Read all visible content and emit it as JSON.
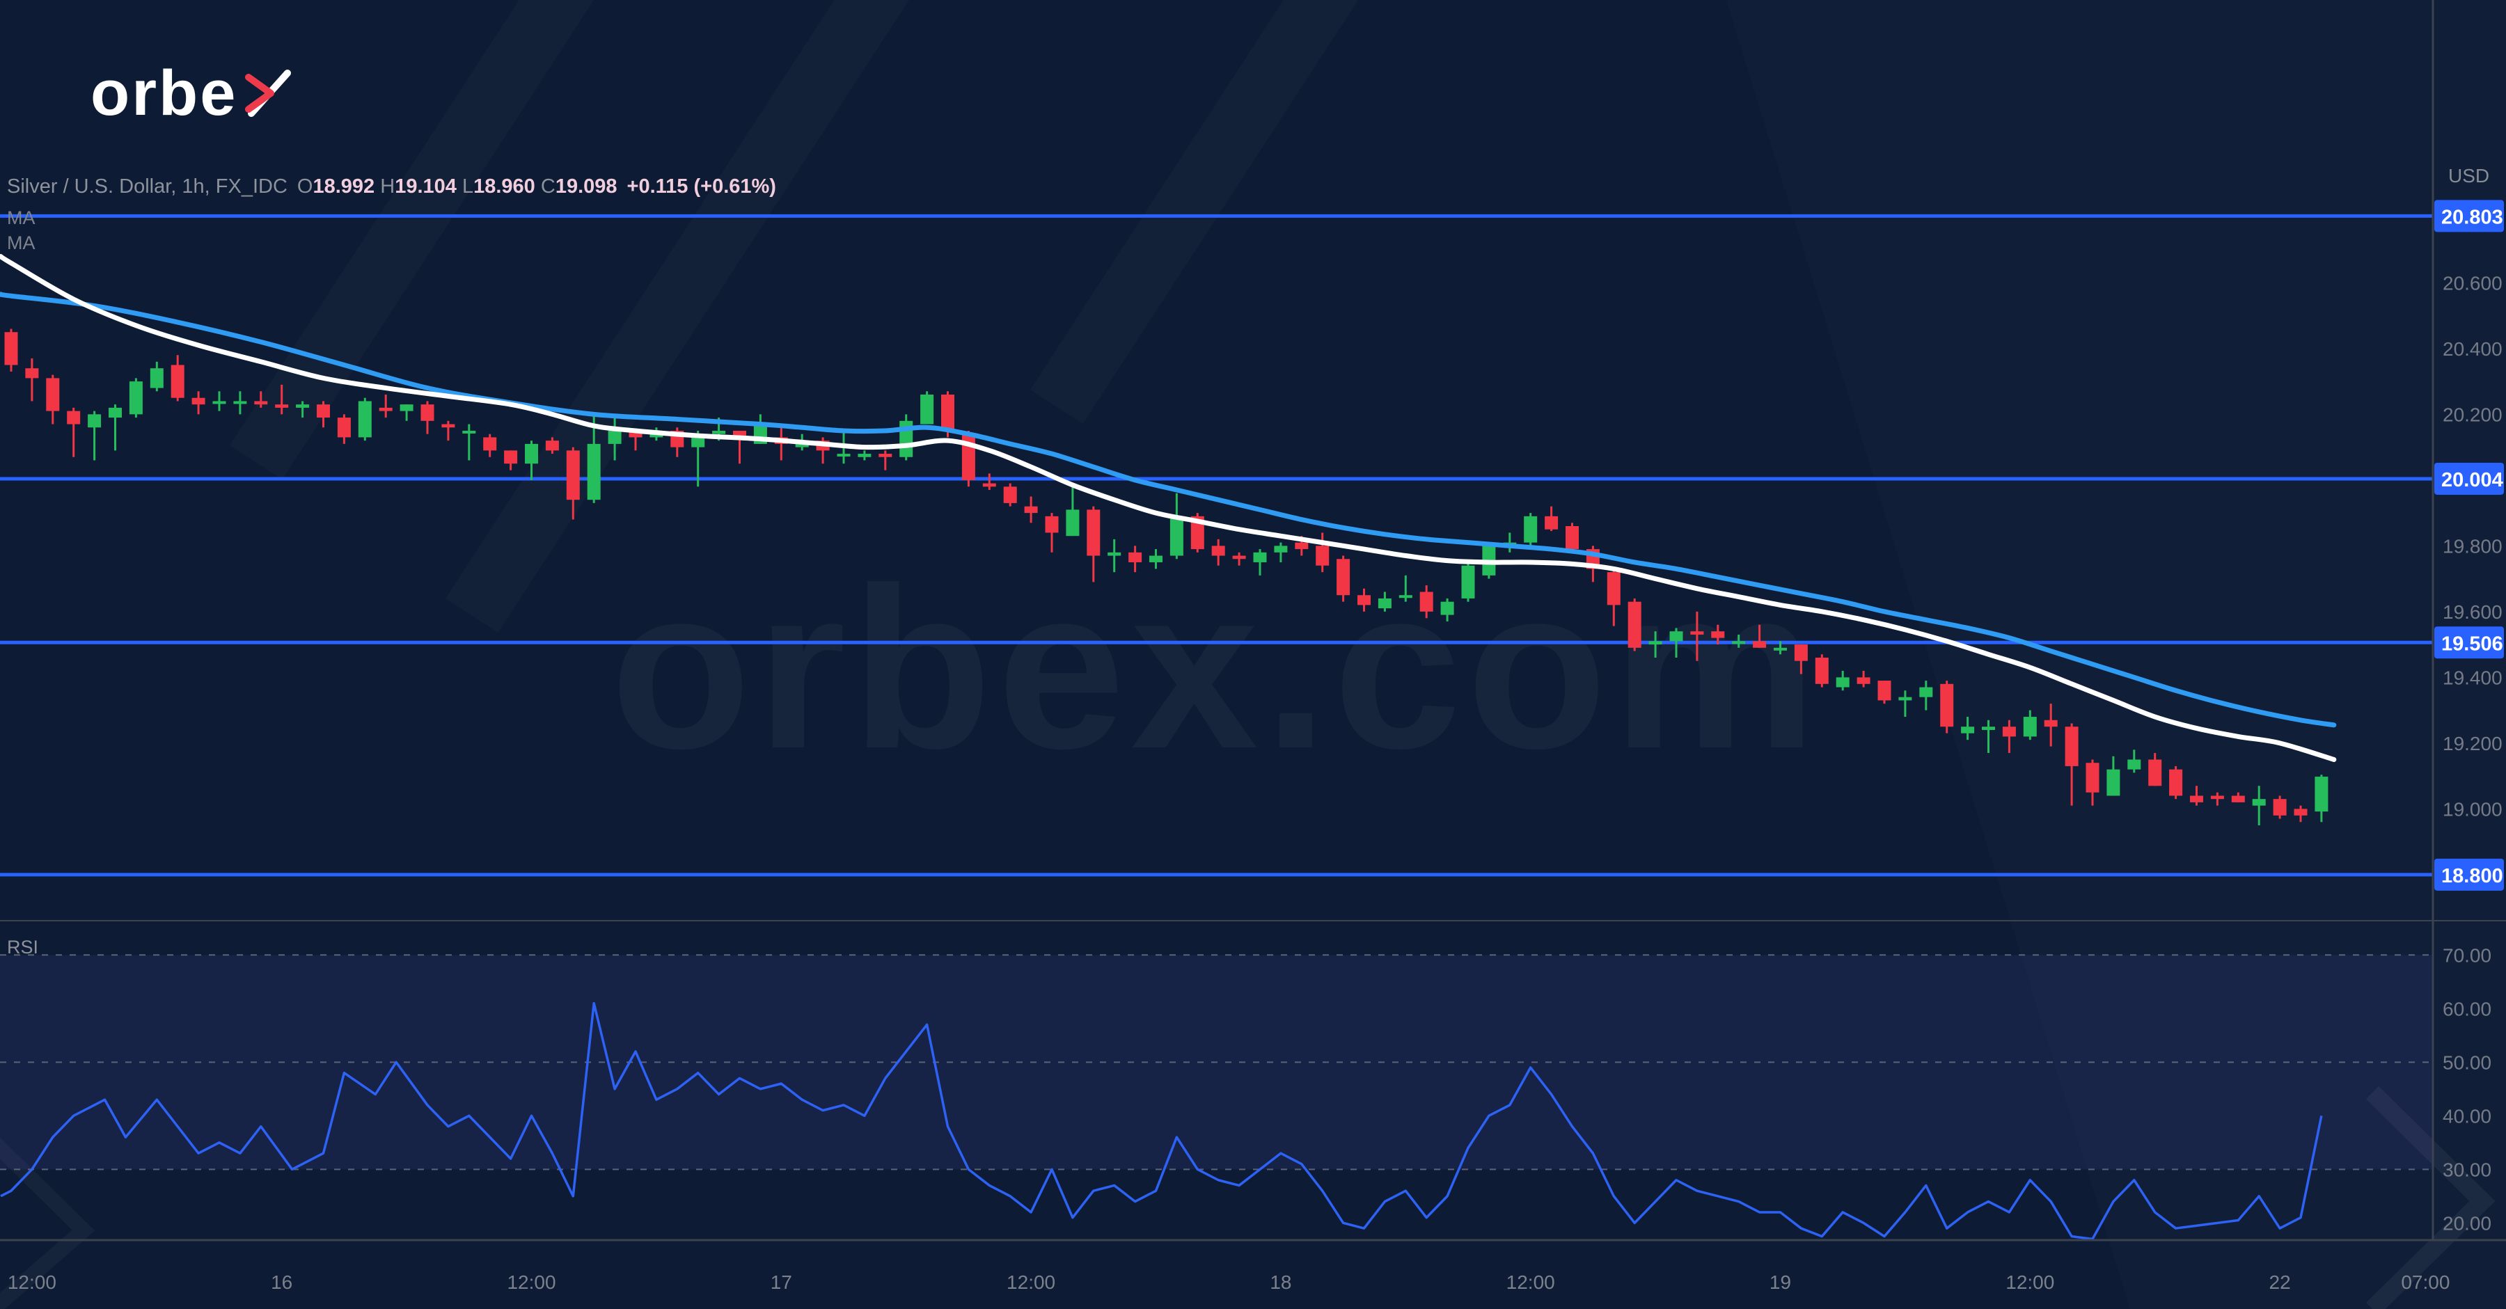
{
  "header": {
    "symbol": "Silver / U.S. Dollar, 1h, FX_IDC",
    "ohlc": [
      {
        "k": "O",
        "v": "18.992"
      },
      {
        "k": "H",
        "v": "19.104"
      },
      {
        "k": "L",
        "v": "18.960"
      },
      {
        "k": "C",
        "v": "19.098"
      }
    ],
    "change": "+0.115 (+0.61%)",
    "ma_labels": [
      "MA",
      "MA"
    ]
  },
  "logo": {
    "text": "orbe"
  },
  "watermark": "orbex.com",
  "price_axis": {
    "currency": "USD",
    "ticks": [
      "20.600",
      "20.400",
      "20.200",
      "19.800",
      "19.600",
      "19.400",
      "19.200",
      "19.000"
    ],
    "max": 21.46,
    "min": 18.66
  },
  "rsi_axis": {
    "label": "RSI",
    "ticks": [
      "70.00",
      "60.00",
      "50.00",
      "40.00",
      "30.00",
      "20.00"
    ],
    "max": 76.4,
    "min": 16.8,
    "guides": [
      70,
      50,
      30
    ],
    "band": [
      30,
      70
    ]
  },
  "time_axis": {
    "labels": [
      {
        "bar": 1,
        "label": "12:00"
      },
      {
        "bar": 13,
        "label": "16"
      },
      {
        "bar": 25,
        "label": "12:00"
      },
      {
        "bar": 37,
        "label": "17"
      },
      {
        "bar": 49,
        "label": "12:00"
      },
      {
        "bar": 61,
        "label": "18"
      },
      {
        "bar": 73,
        "label": "12:00"
      },
      {
        "bar": 85,
        "label": "19"
      },
      {
        "bar": 97,
        "label": "12:00"
      },
      {
        "bar": 109,
        "label": "22"
      },
      {
        "bar": 116,
        "label": "07:00"
      }
    ]
  },
  "chart_data": {
    "type": "candlestick",
    "title": "Silver / U.S. Dollar",
    "interval": "1h",
    "levels": [
      {
        "price": 20.803,
        "label": "20.803"
      },
      {
        "price": 20.004,
        "label": "20.004"
      },
      {
        "price": 19.506,
        "label": "19.506"
      },
      {
        "price": 18.8,
        "label": "18.800"
      }
    ],
    "candles": [
      [
        20.45,
        20.46,
        20.33,
        20.35
      ],
      [
        20.34,
        20.37,
        20.24,
        20.31
      ],
      [
        20.31,
        20.32,
        20.17,
        20.21
      ],
      [
        20.21,
        20.22,
        20.07,
        20.17
      ],
      [
        20.16,
        20.21,
        20.06,
        20.2
      ],
      [
        20.19,
        20.23,
        20.09,
        20.22
      ],
      [
        20.2,
        20.31,
        20.19,
        20.3
      ],
      [
        20.28,
        20.36,
        20.27,
        20.34
      ],
      [
        20.35,
        20.38,
        20.24,
        20.25
      ],
      [
        20.25,
        20.27,
        20.2,
        20.23
      ],
      [
        20.24,
        20.27,
        20.21,
        20.24
      ],
      [
        20.24,
        20.27,
        20.2,
        20.24
      ],
      [
        20.24,
        20.27,
        20.22,
        20.23
      ],
      [
        20.23,
        20.29,
        20.2,
        20.22
      ],
      [
        20.22,
        20.24,
        20.19,
        20.23
      ],
      [
        20.23,
        20.24,
        20.16,
        20.19
      ],
      [
        20.19,
        20.2,
        20.11,
        20.13
      ],
      [
        20.13,
        20.25,
        20.12,
        20.24
      ],
      [
        20.22,
        20.26,
        20.19,
        20.21
      ],
      [
        20.21,
        20.23,
        20.18,
        20.23
      ],
      [
        20.23,
        20.24,
        20.14,
        20.18
      ],
      [
        20.17,
        20.18,
        20.12,
        20.16
      ],
      [
        20.15,
        20.17,
        20.06,
        20.15
      ],
      [
        20.13,
        20.14,
        20.07,
        20.09
      ],
      [
        20.09,
        20.09,
        20.03,
        20.05
      ],
      [
        20.05,
        20.12,
        20.0,
        20.11
      ],
      [
        20.12,
        20.13,
        20.08,
        20.09
      ],
      [
        20.09,
        20.1,
        19.88,
        19.94
      ],
      [
        19.94,
        20.2,
        19.93,
        20.11
      ],
      [
        20.11,
        20.19,
        20.06,
        20.15
      ],
      [
        20.15,
        20.15,
        20.09,
        20.13
      ],
      [
        20.13,
        20.16,
        20.12,
        20.15
      ],
      [
        20.15,
        20.16,
        20.07,
        20.1
      ],
      [
        20.1,
        20.15,
        19.98,
        20.14
      ],
      [
        20.14,
        20.19,
        20.12,
        20.15
      ],
      [
        20.15,
        20.15,
        20.05,
        20.13
      ],
      [
        20.11,
        20.2,
        20.11,
        20.17
      ],
      [
        20.13,
        20.16,
        20.06,
        20.11
      ],
      [
        20.1,
        20.14,
        20.09,
        20.12
      ],
      [
        20.12,
        20.13,
        20.05,
        20.09
      ],
      [
        20.08,
        20.15,
        20.05,
        20.08
      ],
      [
        20.07,
        20.09,
        20.06,
        20.08
      ],
      [
        20.08,
        20.09,
        20.03,
        20.07
      ],
      [
        20.07,
        20.2,
        20.06,
        20.18
      ],
      [
        20.17,
        20.27,
        20.17,
        20.26
      ],
      [
        20.26,
        20.27,
        20.13,
        20.15
      ],
      [
        20.14,
        20.15,
        19.98,
        20.0
      ],
      [
        19.99,
        20.02,
        19.97,
        19.98
      ],
      [
        19.98,
        19.99,
        19.92,
        19.93
      ],
      [
        19.92,
        19.95,
        19.87,
        19.9
      ],
      [
        19.89,
        19.9,
        19.78,
        19.84
      ],
      [
        19.83,
        19.99,
        19.83,
        19.91
      ],
      [
        19.91,
        19.92,
        19.69,
        19.77
      ],
      [
        19.77,
        19.82,
        19.72,
        19.78
      ],
      [
        19.78,
        19.8,
        19.72,
        19.75
      ],
      [
        19.75,
        19.79,
        19.73,
        19.77
      ],
      [
        19.77,
        19.96,
        19.76,
        19.89
      ],
      [
        19.89,
        19.9,
        19.78,
        19.79
      ],
      [
        19.8,
        19.82,
        19.74,
        19.77
      ],
      [
        19.77,
        19.78,
        19.74,
        19.76
      ],
      [
        19.75,
        19.79,
        19.71,
        19.78
      ],
      [
        19.78,
        19.81,
        19.75,
        19.8
      ],
      [
        19.81,
        19.83,
        19.77,
        19.79
      ],
      [
        19.8,
        19.84,
        19.72,
        19.74
      ],
      [
        19.76,
        19.77,
        19.63,
        19.65
      ],
      [
        19.65,
        19.67,
        19.6,
        19.62
      ],
      [
        19.61,
        19.66,
        19.6,
        19.64
      ],
      [
        19.65,
        19.71,
        19.63,
        19.65
      ],
      [
        19.66,
        19.68,
        19.58,
        19.6
      ],
      [
        19.59,
        19.64,
        19.57,
        19.63
      ],
      [
        19.64,
        19.75,
        19.63,
        19.74
      ],
      [
        19.71,
        19.81,
        19.7,
        19.8
      ],
      [
        19.8,
        19.84,
        19.78,
        19.81
      ],
      [
        19.81,
        19.9,
        19.8,
        19.89
      ],
      [
        19.89,
        19.92,
        19.845,
        19.85
      ],
      [
        19.86,
        19.87,
        19.78,
        19.79
      ],
      [
        19.79,
        19.8,
        19.69,
        19.73
      ],
      [
        19.72,
        19.73,
        19.556,
        19.62
      ],
      [
        19.63,
        19.64,
        19.48,
        19.49
      ],
      [
        19.5,
        19.54,
        19.46,
        19.51
      ],
      [
        19.51,
        19.55,
        19.46,
        19.54
      ],
      [
        19.54,
        19.6,
        19.45,
        19.53
      ],
      [
        19.54,
        19.56,
        19.5,
        19.52
      ],
      [
        19.51,
        19.53,
        19.49,
        19.51
      ],
      [
        19.51,
        19.56,
        19.49,
        19.49
      ],
      [
        19.49,
        19.51,
        19.47,
        19.49
      ],
      [
        19.5,
        19.5,
        19.41,
        19.45
      ],
      [
        19.46,
        19.47,
        19.37,
        19.38
      ],
      [
        19.37,
        19.42,
        19.36,
        19.4
      ],
      [
        19.4,
        19.42,
        19.37,
        19.38
      ],
      [
        19.39,
        19.39,
        19.32,
        19.33
      ],
      [
        19.33,
        19.36,
        19.28,
        19.34
      ],
      [
        19.34,
        19.39,
        19.3,
        19.37
      ],
      [
        19.38,
        19.39,
        19.23,
        19.25
      ],
      [
        19.23,
        19.28,
        19.21,
        19.25
      ],
      [
        19.24,
        19.27,
        19.17,
        19.25
      ],
      [
        19.25,
        19.27,
        19.17,
        19.22
      ],
      [
        19.22,
        19.3,
        19.21,
        19.28
      ],
      [
        19.27,
        19.32,
        19.19,
        19.25
      ],
      [
        19.25,
        19.26,
        19.01,
        19.13
      ],
      [
        19.14,
        19.15,
        19.01,
        19.05
      ],
      [
        19.04,
        19.16,
        19.04,
        19.12
      ],
      [
        19.12,
        19.18,
        19.11,
        19.15
      ],
      [
        19.15,
        19.17,
        19.07,
        19.07
      ],
      [
        19.12,
        19.13,
        19.03,
        19.04
      ],
      [
        19.04,
        19.07,
        19.01,
        19.02
      ],
      [
        19.04,
        19.05,
        19.01,
        19.03
      ],
      [
        19.04,
        19.05,
        19.02,
        19.02
      ],
      [
        19.01,
        19.07,
        18.95,
        19.03
      ],
      [
        19.03,
        19.04,
        18.97,
        18.98
      ],
      [
        19.0,
        19.01,
        18.96,
        18.98
      ],
      [
        18.992,
        19.104,
        18.96,
        19.098
      ]
    ],
    "ma_white": [
      [
        -0.5,
        20.68
      ],
      [
        0,
        20.66
      ],
      [
        3,
        20.55
      ],
      [
        6,
        20.47
      ],
      [
        9,
        20.41
      ],
      [
        12,
        20.36
      ],
      [
        15,
        20.31
      ],
      [
        18,
        20.28
      ],
      [
        21,
        20.255
      ],
      [
        24,
        20.23
      ],
      [
        26,
        20.2
      ],
      [
        28,
        20.165
      ],
      [
        30,
        20.15
      ],
      [
        33,
        20.135
      ],
      [
        36,
        20.125
      ],
      [
        39,
        20.11
      ],
      [
        41,
        20.1
      ],
      [
        43,
        20.105
      ],
      [
        45,
        20.12
      ],
      [
        47,
        20.09
      ],
      [
        49,
        20.04
      ],
      [
        51,
        19.985
      ],
      [
        53,
        19.94
      ],
      [
        55,
        19.9
      ],
      [
        57,
        19.875
      ],
      [
        59,
        19.85
      ],
      [
        61,
        19.83
      ],
      [
        63,
        19.81
      ],
      [
        65,
        19.79
      ],
      [
        67,
        19.77
      ],
      [
        69,
        19.755
      ],
      [
        71,
        19.75
      ],
      [
        73,
        19.75
      ],
      [
        75,
        19.745
      ],
      [
        77,
        19.73
      ],
      [
        79,
        19.7
      ],
      [
        81,
        19.67
      ],
      [
        83,
        19.645
      ],
      [
        85,
        19.62
      ],
      [
        87,
        19.6
      ],
      [
        89,
        19.575
      ],
      [
        91,
        19.545
      ],
      [
        93,
        19.51
      ],
      [
        95,
        19.47
      ],
      [
        97,
        19.43
      ],
      [
        99,
        19.38
      ],
      [
        101,
        19.33
      ],
      [
        103,
        19.28
      ],
      [
        105,
        19.245
      ],
      [
        107,
        19.22
      ],
      [
        109,
        19.2
      ],
      [
        111.6,
        19.15
      ]
    ],
    "ma_blue": [
      [
        -0.5,
        20.565
      ],
      [
        0,
        20.56
      ],
      [
        4,
        20.53
      ],
      [
        8,
        20.48
      ],
      [
        12,
        20.42
      ],
      [
        16,
        20.35
      ],
      [
        20,
        20.28
      ],
      [
        24,
        20.235
      ],
      [
        28,
        20.2
      ],
      [
        32,
        20.185
      ],
      [
        36,
        20.17
      ],
      [
        38,
        20.16
      ],
      [
        40,
        20.15
      ],
      [
        42,
        20.15
      ],
      [
        44,
        20.16
      ],
      [
        46,
        20.14
      ],
      [
        48,
        20.11
      ],
      [
        50,
        20.08
      ],
      [
        52,
        20.04
      ],
      [
        54,
        20.0
      ],
      [
        56,
        19.97
      ],
      [
        58,
        19.94
      ],
      [
        60,
        19.91
      ],
      [
        62,
        19.88
      ],
      [
        64,
        19.855
      ],
      [
        66,
        19.835
      ],
      [
        68,
        19.82
      ],
      [
        70,
        19.81
      ],
      [
        72,
        19.8
      ],
      [
        74,
        19.79
      ],
      [
        76,
        19.775
      ],
      [
        78,
        19.75
      ],
      [
        80,
        19.73
      ],
      [
        82,
        19.705
      ],
      [
        84,
        19.68
      ],
      [
        86,
        19.655
      ],
      [
        88,
        19.63
      ],
      [
        90,
        19.6
      ],
      [
        92,
        19.575
      ],
      [
        94,
        19.55
      ],
      [
        96,
        19.52
      ],
      [
        98,
        19.48
      ],
      [
        100,
        19.44
      ],
      [
        102,
        19.4
      ],
      [
        104,
        19.36
      ],
      [
        106,
        19.325
      ],
      [
        108,
        19.295
      ],
      [
        110,
        19.27
      ],
      [
        111.6,
        19.255
      ]
    ],
    "rsi": [
      [
        -0.5,
        25
      ],
      [
        0,
        26
      ],
      [
        1,
        30
      ],
      [
        2,
        36
      ],
      [
        3,
        40
      ],
      [
        4.5,
        43
      ],
      [
        5.5,
        36
      ],
      [
        7,
        43
      ],
      [
        8,
        38
      ],
      [
        9,
        33
      ],
      [
        10,
        35
      ],
      [
        11,
        33
      ],
      [
        12,
        38
      ],
      [
        13.5,
        30
      ],
      [
        15,
        33
      ],
      [
        16,
        48
      ],
      [
        17.5,
        44
      ],
      [
        18.5,
        50
      ],
      [
        20,
        42
      ],
      [
        21,
        38
      ],
      [
        22,
        40
      ],
      [
        23,
        36
      ],
      [
        24,
        32
      ],
      [
        25,
        40
      ],
      [
        26,
        33
      ],
      [
        27,
        25
      ],
      [
        28,
        61
      ],
      [
        29,
        45
      ],
      [
        30,
        52
      ],
      [
        31,
        43
      ],
      [
        32,
        45
      ],
      [
        33,
        48
      ],
      [
        34,
        44
      ],
      [
        35,
        47
      ],
      [
        36,
        45
      ],
      [
        37,
        46
      ],
      [
        38,
        43
      ],
      [
        39,
        41
      ],
      [
        40,
        42
      ],
      [
        41,
        40
      ],
      [
        42,
        47
      ],
      [
        43,
        52
      ],
      [
        44,
        57
      ],
      [
        45,
        38
      ],
      [
        46,
        30
      ],
      [
        47,
        27
      ],
      [
        48,
        25
      ],
      [
        49,
        22
      ],
      [
        50,
        30
      ],
      [
        51,
        21
      ],
      [
        52,
        26
      ],
      [
        53,
        27
      ],
      [
        54,
        24
      ],
      [
        55,
        26
      ],
      [
        56,
        36
      ],
      [
        57,
        30
      ],
      [
        58,
        28
      ],
      [
        59,
        27
      ],
      [
        60,
        30
      ],
      [
        61,
        33
      ],
      [
        62,
        31
      ],
      [
        63,
        26
      ],
      [
        64,
        20
      ],
      [
        65,
        19
      ],
      [
        66,
        24
      ],
      [
        67,
        26
      ],
      [
        68,
        21
      ],
      [
        69,
        25
      ],
      [
        70,
        34
      ],
      [
        71,
        40
      ],
      [
        72,
        42
      ],
      [
        73,
        49
      ],
      [
        74,
        44
      ],
      [
        75,
        38
      ],
      [
        76,
        33
      ],
      [
        77,
        25
      ],
      [
        78,
        20
      ],
      [
        79,
        24
      ],
      [
        80,
        28
      ],
      [
        81,
        26
      ],
      [
        82,
        25
      ],
      [
        83,
        24
      ],
      [
        84,
        22
      ],
      [
        85,
        22
      ],
      [
        86,
        19
      ],
      [
        87,
        17.5
      ],
      [
        88,
        22
      ],
      [
        89,
        20
      ],
      [
        90,
        17.5
      ],
      [
        91,
        22
      ],
      [
        92,
        27
      ],
      [
        93,
        19
      ],
      [
        94,
        22
      ],
      [
        95,
        24
      ],
      [
        96,
        22
      ],
      [
        97,
        28
      ],
      [
        98,
        24
      ],
      [
        99,
        17.5
      ],
      [
        100,
        17
      ],
      [
        101,
        24
      ],
      [
        102,
        28
      ],
      [
        103,
        22
      ],
      [
        104,
        19
      ],
      [
        105,
        19.5
      ],
      [
        106,
        20
      ],
      [
        107,
        20.5
      ],
      [
        108,
        25
      ],
      [
        109,
        19
      ],
      [
        110,
        21
      ],
      [
        111,
        40
      ]
    ]
  },
  "colors": {
    "bg": "#0d1c34",
    "up": "#26bd5c",
    "down": "#f23645",
    "level": "#2962ff",
    "badge": "#2962ff",
    "ma_white": "#ffffff",
    "ma_blue": "#2f9bf2",
    "rsi_line": "#2d62f5",
    "rsi_band": "rgba(106,90,240,0.10)",
    "guide": "#767b86",
    "axis_text": "#878c97",
    "separator": "#3c4250"
  }
}
